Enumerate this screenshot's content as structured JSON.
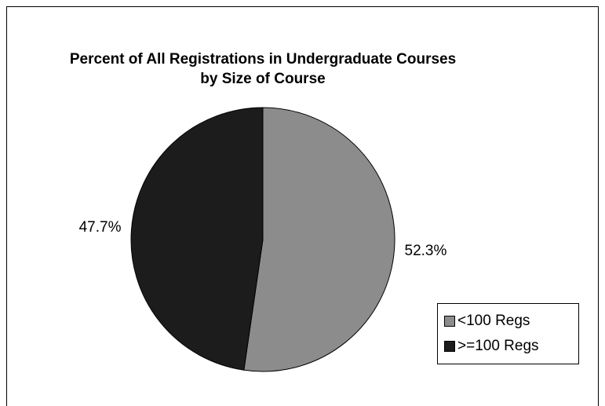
{
  "chart_data": {
    "type": "pie",
    "title": [
      "Percent of All Registrations in Undergraduate Courses",
      "by Size of Course"
    ],
    "categories": [
      "<100 Regs",
      ">=100 Regs"
    ],
    "values": [
      52.3,
      47.7
    ],
    "value_labels": [
      "52.3%",
      "47.7%"
    ],
    "colors": [
      "#8c8c8c",
      "#1c1c1c"
    ],
    "legend": "right"
  }
}
